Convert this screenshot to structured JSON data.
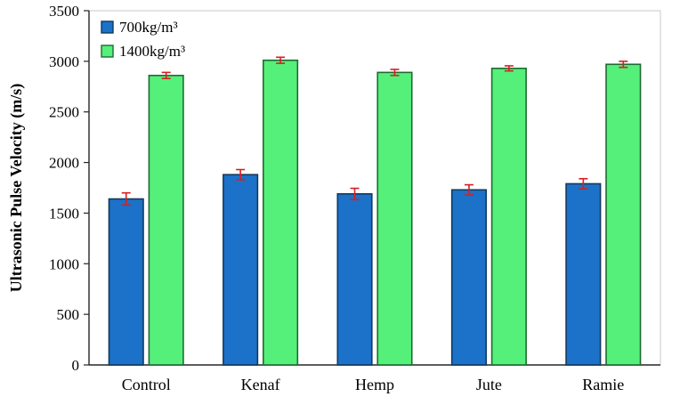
{
  "chart_data": {
    "type": "bar",
    "title": "",
    "xlabel": "",
    "ylabel": "Ultrasonic Pulse Velocity (m/s)",
    "categories": [
      "Control",
      "Kenaf",
      "Hemp",
      "Jute",
      "Ramie"
    ],
    "series": [
      {
        "name": "700kg/m³",
        "values": [
          1640,
          1880,
          1690,
          1730,
          1790
        ],
        "errors": [
          60,
          50,
          55,
          50,
          50
        ],
        "fill": "#1B72C8",
        "stroke": "#123A5E"
      },
      {
        "name": "1400kg/m³",
        "values": [
          2860,
          3010,
          2890,
          2930,
          2970
        ],
        "errors": [
          30,
          30,
          30,
          25,
          30
        ],
        "fill": "#55F07A",
        "stroke": "#1E6B33"
      }
    ],
    "ylim": [
      0,
      3500
    ],
    "ytick_step": 500,
    "ytick_labels": [
      "0",
      "500",
      "1000",
      "1500",
      "2000",
      "2500",
      "3000",
      "3500"
    ],
    "error_bar_color": "#D62020",
    "axis_line_color": "#262626",
    "plot_border_color": "#C9C9C9",
    "legend_position": "top-left",
    "grid": false
  }
}
